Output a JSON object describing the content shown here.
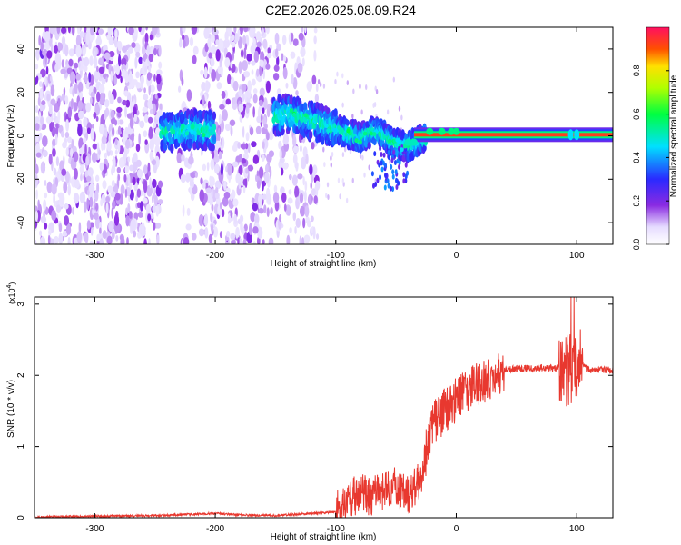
{
  "title": "C2E2.2026.025.08.09.R24",
  "chart_data": [
    {
      "type": "heatmap",
      "xlabel": "Height of straight line (km)",
      "ylabel": "Frequency (Hz)",
      "xlim": [
        -350,
        130
      ],
      "ylim": [
        -50,
        50
      ],
      "xticks": [
        "-300",
        "-200",
        "-100",
        "0",
        "100"
      ],
      "yticks": [
        "-40",
        "-20",
        "0",
        "20",
        "40"
      ],
      "colorbar": {
        "label": "Normalized spectral amplitude",
        "ticks": [
          "0.0",
          "0.2",
          "0.4",
          "0.6",
          "0.8"
        ],
        "range": [
          0,
          1
        ]
      },
      "ridge": [
        {
          "x": -240,
          "f": 2
        },
        {
          "x": -220,
          "f": 3
        },
        {
          "x": -200,
          "f": 2
        },
        {
          "x": -150,
          "f": 9
        },
        {
          "x": -140,
          "f": 10
        },
        {
          "x": -120,
          "f": 7
        },
        {
          "x": -100,
          "f": 3
        },
        {
          "x": -90,
          "f": 1
        },
        {
          "x": -80,
          "f": -1
        },
        {
          "x": -70,
          "f": 2
        },
        {
          "x": -60,
          "f": 0
        },
        {
          "x": -50,
          "f": -4
        },
        {
          "x": -40,
          "f": -5
        },
        {
          "x": -30,
          "f": -2
        },
        {
          "x": -20,
          "f": 0
        },
        {
          "x": -10,
          "f": 1
        },
        {
          "x": 0,
          "f": 0.5
        },
        {
          "x": 100,
          "f": 0.5
        },
        {
          "x": 130,
          "f": 0.5
        }
      ]
    },
    {
      "type": "line",
      "xlabel": "Height of straight line (km)",
      "ylabel": "SNR (10 * v/v)",
      "multiplier": "(x10",
      "multiplier_exp": "4",
      "multiplier_close": ")",
      "xlim": [
        -350,
        130
      ],
      "ylim": [
        0,
        3.1
      ],
      "xticks": [
        "-300",
        "-200",
        "-100",
        "0",
        "100"
      ],
      "yticks": [
        "0",
        "1",
        "2",
        "3"
      ],
      "color": "#e8382f",
      "series": [
        {
          "x": [
            -350,
            -300,
            -250,
            -200,
            -180,
            -150,
            -120,
            -100,
            -90,
            -80,
            -70,
            -60,
            -50,
            -40,
            -30,
            -20,
            -10,
            0,
            10,
            20,
            30,
            40,
            60,
            80,
            90,
            95,
            100,
            105,
            110,
            130
          ],
          "values": [
            0.01,
            0.02,
            0.03,
            0.06,
            0.04,
            0.03,
            0.06,
            0.08,
            0.25,
            0.35,
            0.3,
            0.4,
            0.45,
            0.3,
            0.55,
            1.3,
            1.5,
            1.65,
            1.8,
            1.9,
            2.0,
            2.08,
            2.1,
            2.1,
            2.12,
            2.05,
            2.1,
            2.12,
            2.08,
            2.07
          ]
        }
      ]
    }
  ]
}
